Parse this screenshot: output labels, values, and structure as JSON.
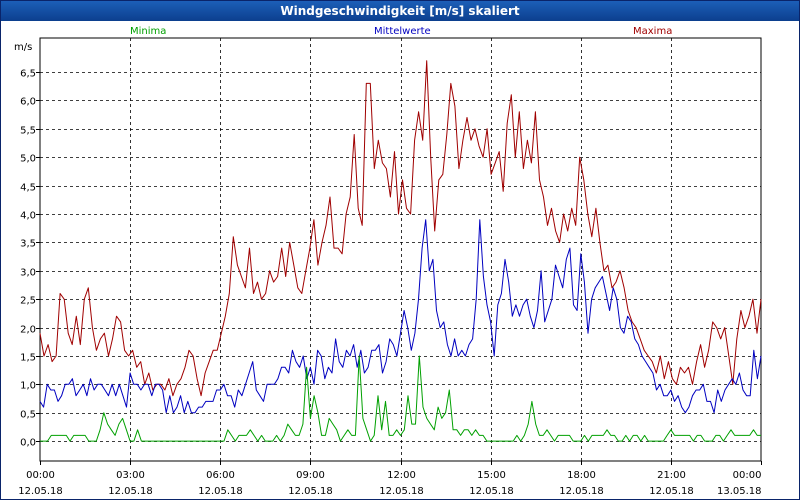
{
  "window": {
    "title": "Windgeschwindigkeit [m/s] skaliert"
  },
  "chart_data": {
    "type": "line",
    "title": "Windgeschwindigkeit [m/s] skaliert",
    "ylabel": "m/s",
    "ylim": [
      -0.35,
      7.1
    ],
    "xlim": [
      0,
      96
    ],
    "grid": true,
    "legend": [
      {
        "name": "Minima",
        "color": "#00a000",
        "position": "top-left"
      },
      {
        "name": "Mittelwerte",
        "color": "#0000c0",
        "position": "top-center"
      },
      {
        "name": "Maxima",
        "color": "#a00000",
        "position": "top-right"
      }
    ],
    "yticks": [
      {
        "value": 0.0,
        "label": "0,0"
      },
      {
        "value": 0.5,
        "label": "0,5"
      },
      {
        "value": 1.0,
        "label": "1,0"
      },
      {
        "value": 1.5,
        "label": "1,5"
      },
      {
        "value": 2.0,
        "label": "2,0"
      },
      {
        "value": 2.5,
        "label": "2,5"
      },
      {
        "value": 3.0,
        "label": "3,0"
      },
      {
        "value": 3.5,
        "label": "3,5"
      },
      {
        "value": 4.0,
        "label": "4,0"
      },
      {
        "value": 4.5,
        "label": "4,5"
      },
      {
        "value": 5.0,
        "label": "5,0"
      },
      {
        "value": 5.5,
        "label": "5,5"
      },
      {
        "value": 6.0,
        "label": "6,0"
      },
      {
        "value": 6.5,
        "label": "6,5"
      }
    ],
    "xticks": [
      {
        "value": 0,
        "time": "00:00",
        "date": "12.05.18"
      },
      {
        "value": 12,
        "time": "03:00",
        "date": "12.05.18"
      },
      {
        "value": 24,
        "time": "06:00",
        "date": "12.05.18"
      },
      {
        "value": 36,
        "time": "09:00",
        "date": "12.05.18"
      },
      {
        "value": 48,
        "time": "12:00",
        "date": "12.05.18"
      },
      {
        "value": 60,
        "time": "15:00",
        "date": "12.05.18"
      },
      {
        "value": 72,
        "time": "18:00",
        "date": "12.05.18"
      },
      {
        "value": 84,
        "time": "21:00",
        "date": "12.05.18"
      },
      {
        "value": 96,
        "time": "00:00",
        "date": "13.05.18"
      }
    ],
    "series": [
      {
        "name": "Maxima",
        "color": "#a00000",
        "values": [
          1.9,
          1.5,
          1.7,
          1.4,
          1.5,
          2.6,
          2.5,
          1.9,
          1.7,
          2.2,
          1.7,
          2.5,
          2.7,
          2.0,
          1.6,
          1.8,
          1.9,
          1.5,
          1.8,
          2.2,
          2.1,
          1.6,
          1.5,
          1.6,
          1.3,
          1.4,
          1.0,
          1.2,
          0.9,
          1.0,
          1.0,
          0.9,
          1.1,
          0.8,
          1.0,
          1.1,
          1.3,
          1.6,
          1.5,
          1.1,
          0.8,
          1.2,
          1.4,
          1.6,
          1.6,
          1.9,
          2.2,
          2.6,
          3.6,
          3.1,
          2.9,
          2.7,
          3.4,
          2.6,
          2.8,
          2.5,
          2.6,
          3.0,
          2.8,
          2.9,
          3.4,
          2.9,
          3.5,
          3.1,
          2.7,
          2.6,
          3.0,
          3.4,
          3.9,
          3.1,
          3.5,
          3.8,
          4.3,
          3.4,
          3.4,
          3.3,
          4.0,
          4.3,
          5.4,
          4.1,
          3.8,
          6.3,
          6.3,
          4.8,
          5.3,
          4.9,
          4.8,
          4.3,
          5.1,
          4.0,
          4.6,
          4.1,
          4.0,
          5.3,
          5.8,
          5.3,
          6.7,
          5.0,
          3.7,
          4.6,
          4.7,
          5.4,
          6.3,
          5.9,
          4.8,
          5.3,
          5.7,
          5.3,
          5.5,
          5.2,
          5.0,
          5.5,
          4.7,
          4.9,
          5.1,
          4.4,
          5.6,
          6.1,
          5.0,
          5.8,
          4.8,
          5.3,
          4.9,
          5.8,
          4.6,
          4.3,
          3.8,
          4.1,
          3.7,
          3.5,
          4.0,
          3.7,
          4.1,
          3.8,
          5.0,
          4.6,
          4.0,
          3.6,
          4.1,
          3.5,
          3.0,
          3.1,
          2.7,
          2.8,
          3.0,
          2.7,
          2.3,
          2.1,
          2.0,
          1.8,
          1.6,
          1.5,
          1.4,
          1.2,
          1.5,
          1.1,
          1.4,
          1.1,
          1.0,
          1.3,
          1.2,
          1.3,
          1.0,
          1.4,
          1.7,
          1.3,
          1.6,
          2.1,
          2.0,
          1.8,
          2.0,
          1.5,
          1.0,
          1.8,
          2.3,
          2.0,
          2.2,
          2.5,
          1.9,
          2.5
        ]
      },
      {
        "name": "Mittelwerte",
        "color": "#0000c0",
        "values": [
          0.7,
          0.6,
          1.0,
          0.9,
          0.9,
          0.7,
          0.8,
          1.0,
          1.0,
          1.1,
          0.8,
          0.9,
          1.0,
          0.8,
          1.1,
          0.9,
          1.0,
          1.0,
          0.9,
          0.8,
          1.0,
          0.8,
          1.0,
          0.8,
          0.6,
          1.2,
          1.0,
          1.0,
          0.9,
          1.0,
          1.0,
          0.8,
          1.0,
          1.0,
          0.9,
          0.5,
          0.8,
          0.5,
          0.6,
          0.8,
          0.5,
          0.7,
          0.5,
          0.5,
          0.6,
          0.6,
          0.7,
          0.7,
          0.7,
          0.9,
          0.9,
          1.0,
          0.8,
          0.8,
          0.6,
          0.9,
          0.8,
          1.0,
          1.2,
          1.4,
          0.9,
          0.8,
          0.7,
          1.0,
          1.0,
          1.0,
          1.1,
          1.3,
          1.3,
          1.2,
          1.6,
          1.4,
          1.3,
          1.5,
          1.1,
          1.3,
          1.0,
          1.6,
          1.5,
          1.1,
          1.3,
          1.2,
          1.8,
          1.4,
          1.3,
          1.6,
          1.5,
          1.7,
          1.3,
          1.6,
          1.2,
          1.3,
          1.6,
          1.6,
          1.7,
          1.2,
          1.4,
          1.8,
          1.7,
          1.5,
          1.9,
          2.3,
          2.0,
          1.6,
          1.9,
          2.5,
          3.4,
          3.9,
          3.0,
          3.2,
          2.3,
          2.0,
          2.1,
          1.7,
          1.5,
          1.8,
          1.5,
          1.6,
          1.5,
          1.7,
          1.8,
          2.5,
          3.9,
          2.9,
          2.4,
          2.1,
          1.5,
          2.4,
          2.6,
          3.2,
          2.8,
          2.2,
          2.4,
          2.2,
          2.4,
          2.5,
          2.2,
          2.0,
          2.3,
          3.0,
          2.1,
          2.3,
          2.5,
          3.1,
          2.9,
          2.7,
          3.2,
          3.4,
          2.4,
          2.3,
          3.3,
          2.8,
          1.9,
          2.5,
          2.7,
          2.8,
          2.9,
          2.6,
          2.3,
          2.7,
          2.5,
          2.0,
          1.9,
          2.2,
          2.1,
          1.8,
          1.7,
          1.5,
          1.4,
          1.3,
          1.2,
          0.9,
          1.0,
          0.8,
          0.8,
          0.9,
          0.7,
          0.8,
          0.6,
          0.5,
          0.6,
          0.8,
          0.9,
          0.9,
          1.0,
          0.7,
          0.7,
          0.5,
          0.9,
          0.7,
          0.9,
          1.0,
          1.1,
          1.0,
          1.2,
          0.9,
          0.8,
          0.8,
          1.6,
          1.1,
          1.5
        ]
      },
      {
        "name": "Minima",
        "color": "#00a000",
        "values": [
          0.0,
          0.0,
          0.0,
          0.1,
          0.1,
          0.1,
          0.1,
          0.1,
          0.0,
          0.1,
          0.1,
          0.1,
          0.1,
          0.0,
          0.0,
          0.0,
          0.2,
          0.5,
          0.3,
          0.2,
          0.1,
          0.3,
          0.4,
          0.2,
          0.0,
          0.0,
          0.2,
          0.0,
          0.0,
          0.0,
          0.0,
          0.0,
          0.0,
          0.0,
          0.0,
          0.0,
          0.0,
          0.0,
          0.0,
          0.0,
          0.0,
          0.0,
          0.0,
          0.0,
          0.0,
          0.0,
          0.0,
          0.0,
          0.0,
          0.0,
          0.2,
          0.1,
          0.0,
          0.1,
          0.1,
          0.1,
          0.2,
          0.1,
          0.0,
          0.1,
          0.0,
          0.0,
          0.0,
          0.1,
          0.0,
          0.1,
          0.3,
          0.2,
          0.1,
          0.1,
          0.3,
          1.3,
          0.4,
          0.8,
          0.5,
          0.1,
          0.1,
          0.4,
          0.3,
          0.2,
          0.0,
          0.1,
          0.2,
          0.1,
          0.1,
          1.5,
          0.4,
          0.2,
          0.0,
          0.1,
          0.8,
          0.2,
          0.7,
          0.1,
          0.1,
          0.2,
          0.1,
          0.2,
          0.8,
          0.3,
          0.3,
          1.5,
          0.6,
          0.4,
          0.3,
          0.2,
          0.6,
          0.4,
          0.5,
          0.9,
          0.2,
          0.2,
          0.1,
          0.2,
          0.2,
          0.1,
          0.2,
          0.1,
          0.1,
          0.0,
          0.0,
          0.0,
          0.0,
          0.0,
          0.0,
          0.0,
          0.0,
          0.1,
          0.0,
          0.1,
          0.3,
          0.7,
          0.3,
          0.1,
          0.1,
          0.2,
          0.1,
          0.0,
          0.1,
          0.1,
          0.1,
          0.1,
          0.0,
          0.0,
          0.0,
          0.1,
          0.0,
          0.1,
          0.1,
          0.1,
          0.1,
          0.2,
          0.1,
          0.1,
          0.0,
          0.0,
          0.1,
          0.0,
          0.1,
          0.1,
          0.0,
          0.1,
          0.0,
          0.0,
          0.0,
          0.0,
          0.0,
          0.1,
          0.2,
          0.1,
          0.1,
          0.1,
          0.1,
          0.1,
          0.0,
          0.1,
          0.1,
          0.0,
          0.0,
          0.0,
          0.1,
          0.1,
          0.0,
          0.1,
          0.2,
          0.1,
          0.1,
          0.1,
          0.1,
          0.1,
          0.2,
          0.1,
          0.1
        ]
      }
    ]
  }
}
